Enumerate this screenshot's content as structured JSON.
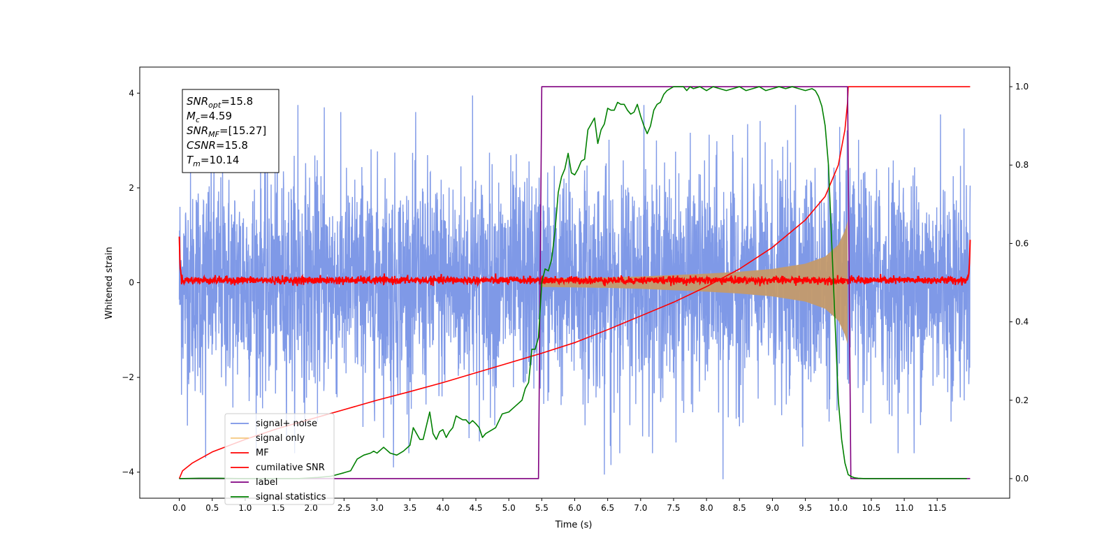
{
  "chart_data": {
    "type": "line",
    "xlabel": "Time (s)",
    "ylabel": "Whitened strain",
    "xlim": [
      -0.6,
      12.6
    ],
    "ylim": [
      -4.55,
      4.55
    ],
    "ylim_right": [
      -0.05,
      1.05
    ],
    "x_ticks": [
      "0.0",
      "0.5",
      "1.0",
      "1.5",
      "2.0",
      "2.5",
      "3.0",
      "3.5",
      "4.0",
      "4.5",
      "5.0",
      "5.5",
      "6.0",
      "6.5",
      "7.0",
      "7.5",
      "8.0",
      "8.5",
      "9.0",
      "9.5",
      "10.0",
      "10.5",
      "11.0",
      "11.5"
    ],
    "y_ticks_left": [
      "4",
      "2",
      "0",
      "−2",
      "−4"
    ],
    "y_ticks_right": [
      "1.0",
      "0.8",
      "0.6",
      "0.4",
      "0.2",
      "0.0"
    ],
    "grid": false,
    "legend_position": "lower-left",
    "legend": [
      {
        "label": "signal+ noise",
        "color": "#7893e6"
      },
      {
        "label": "signal only",
        "color": "#f5c77e"
      },
      {
        "label": "MF",
        "color": "#ff0000"
      },
      {
        "label": "cumilative SNR",
        "color": "#ff0000"
      },
      {
        "label": "label",
        "color": "#800080"
      },
      {
        "label": "signal statistics",
        "color": "#008000"
      }
    ],
    "annotation": {
      "lines": [
        {
          "base": "SNR",
          "sub": "opt",
          "value": "=15.8"
        },
        {
          "base": "M",
          "sub": "c",
          "value": "=4.59"
        },
        {
          "base": "SNR",
          "sub": "MF",
          "value": "=[15.27]"
        },
        {
          "base": "CSNR",
          "sub": "",
          "value": "=15.8"
        },
        {
          "base": "T",
          "sub": "m",
          "value": "=10.14"
        }
      ]
    },
    "series": [
      {
        "name": "signal+ noise",
        "axis": "left",
        "color": "#7893e6",
        "x_range": [
          0.0,
          12.0
        ],
        "noise_std": 1.0,
        "extreme_points": [
          {
            "x": 4.45,
            "y": 3.95
          },
          {
            "x": 6.45,
            "y": -4.05
          },
          {
            "x": 8.25,
            "y": -4.15
          },
          {
            "x": 3.25,
            "y": -3.9
          },
          {
            "x": 1.8,
            "y": 3.75
          },
          {
            "x": 2.2,
            "y": 3.7
          },
          {
            "x": 6.55,
            "y": 3.75
          },
          {
            "x": 7.05,
            "y": 3.75
          },
          {
            "x": 9.35,
            "y": 3.75
          },
          {
            "x": 11.55,
            "y": 3.55
          },
          {
            "x": 11.15,
            "y": -3.6
          },
          {
            "x": 6.55,
            "y": -3.85
          },
          {
            "x": 0.4,
            "y": -3.7
          }
        ]
      },
      {
        "name": "signal only",
        "axis": "left",
        "color": "#f5c77e",
        "x_range": [
          5.5,
          10.14
        ],
        "envelope": [
          [
            5.5,
            0.09
          ],
          [
            6.0,
            0.1
          ],
          [
            6.5,
            0.11
          ],
          [
            7.0,
            0.13
          ],
          [
            7.5,
            0.16
          ],
          [
            8.0,
            0.19
          ],
          [
            8.5,
            0.23
          ],
          [
            9.0,
            0.29
          ],
          [
            9.5,
            0.4
          ],
          [
            9.8,
            0.55
          ],
          [
            10.0,
            0.8
          ],
          [
            10.1,
            1.1
          ],
          [
            10.14,
            1.3
          ]
        ]
      },
      {
        "name": "MF",
        "axis": "left",
        "color": "#ff0000",
        "x_range": [
          0.0,
          12.0
        ],
        "level": 0.05,
        "noise_std": 0.04,
        "edge_values": [
          {
            "x": 0.0,
            "y": 1.0
          },
          {
            "x": 12.0,
            "y": 0.95
          }
        ]
      },
      {
        "name": "cumilative SNR",
        "axis": "right",
        "color": "#ff0000",
        "x": [
          0.0,
          0.05,
          0.2,
          0.5,
          1.0,
          1.5,
          2.0,
          2.5,
          3.0,
          3.5,
          4.0,
          4.5,
          5.0,
          5.5,
          6.0,
          6.5,
          7.0,
          7.5,
          8.0,
          8.5,
          9.0,
          9.5,
          9.8,
          10.0,
          10.1,
          10.14,
          10.15,
          12.0
        ],
        "values": [
          0.0,
          0.02,
          0.04,
          0.068,
          0.1,
          0.128,
          0.152,
          0.176,
          0.2,
          0.222,
          0.245,
          0.27,
          0.295,
          0.32,
          0.347,
          0.38,
          0.415,
          0.45,
          0.49,
          0.535,
          0.59,
          0.66,
          0.72,
          0.8,
          0.89,
          0.96,
          1.0,
          1.0
        ]
      },
      {
        "name": "label",
        "axis": "right",
        "color": "#800080",
        "x": [
          0.0,
          5.45,
          5.5,
          10.14,
          10.19,
          12.0
        ],
        "values": [
          0.0,
          0.0,
          1.0,
          1.0,
          0.0,
          0.0
        ]
      },
      {
        "name": "signal statistics",
        "axis": "right",
        "color": "#008000",
        "x": [
          0.0,
          0.3,
          0.6,
          1.0,
          1.5,
          1.8,
          2.1,
          2.3,
          2.5,
          2.6,
          2.7,
          2.8,
          2.9,
          2.95,
          3.0,
          3.1,
          3.2,
          3.3,
          3.4,
          3.5,
          3.55,
          3.6,
          3.65,
          3.7,
          3.8,
          3.85,
          3.9,
          3.95,
          4.0,
          4.05,
          4.1,
          4.15,
          4.2,
          4.25,
          4.3,
          4.35,
          4.4,
          4.45,
          4.5,
          4.55,
          4.6,
          4.65,
          4.7,
          4.8,
          4.9,
          5.0,
          5.1,
          5.2,
          5.25,
          5.3,
          5.35,
          5.4,
          5.45,
          5.5,
          5.55,
          5.6,
          5.65,
          5.7,
          5.75,
          5.8,
          5.85,
          5.9,
          5.95,
          6.0,
          6.05,
          6.1,
          6.15,
          6.2,
          6.25,
          6.3,
          6.35,
          6.4,
          6.45,
          6.5,
          6.55,
          6.6,
          6.65,
          6.7,
          6.75,
          6.8,
          6.85,
          6.9,
          6.95,
          7.0,
          7.05,
          7.1,
          7.15,
          7.2,
          7.25,
          7.3,
          7.35,
          7.4,
          7.45,
          7.5,
          7.55,
          7.6,
          7.65,
          7.7,
          7.75,
          7.8,
          7.9,
          8.0,
          8.05,
          8.1,
          8.2,
          8.3,
          8.4,
          8.5,
          8.6,
          8.7,
          8.8,
          8.9,
          9.0,
          9.1,
          9.2,
          9.3,
          9.4,
          9.5,
          9.6,
          9.65,
          9.7,
          9.75,
          9.8,
          9.85,
          9.9,
          9.95,
          10.0,
          10.05,
          10.1,
          10.15,
          10.2,
          10.25,
          10.3,
          10.4,
          10.6,
          11.0,
          11.5,
          11.95
        ],
        "values": [
          0.0,
          0.001,
          0.001,
          0.0,
          0.0,
          0.0,
          0.003,
          0.006,
          0.015,
          0.02,
          0.05,
          0.06,
          0.065,
          0.07,
          0.065,
          0.08,
          0.065,
          0.06,
          0.07,
          0.085,
          0.13,
          0.115,
          0.1,
          0.1,
          0.17,
          0.115,
          0.1,
          0.12,
          0.125,
          0.105,
          0.12,
          0.13,
          0.16,
          0.155,
          0.15,
          0.15,
          0.14,
          0.148,
          0.14,
          0.13,
          0.105,
          0.115,
          0.12,
          0.13,
          0.165,
          0.17,
          0.185,
          0.2,
          0.23,
          0.245,
          0.33,
          0.33,
          0.36,
          0.5,
          0.535,
          0.53,
          0.56,
          0.63,
          0.73,
          0.77,
          0.79,
          0.83,
          0.78,
          0.775,
          0.79,
          0.81,
          0.815,
          0.89,
          0.905,
          0.92,
          0.855,
          0.89,
          0.905,
          0.945,
          0.94,
          0.94,
          0.96,
          0.955,
          0.955,
          0.94,
          0.93,
          0.935,
          0.955,
          0.925,
          0.9,
          0.88,
          0.9,
          0.94,
          0.955,
          0.96,
          0.98,
          0.99,
          0.995,
          1.0,
          1.0,
          1.0,
          1.0,
          0.99,
          1.0,
          0.995,
          1.0,
          0.99,
          0.995,
          1.0,
          0.995,
          0.99,
          0.995,
          1.0,
          0.99,
          0.995,
          1.0,
          0.99,
          0.995,
          1.0,
          0.995,
          1.0,
          0.995,
          0.99,
          0.995,
          0.99,
          0.975,
          0.95,
          0.9,
          0.8,
          0.6,
          0.4,
          0.2,
          0.1,
          0.04,
          0.01,
          0.005,
          0.002,
          0.001,
          0.0,
          0.0,
          0.0,
          0.0,
          0.0
        ]
      }
    ]
  }
}
